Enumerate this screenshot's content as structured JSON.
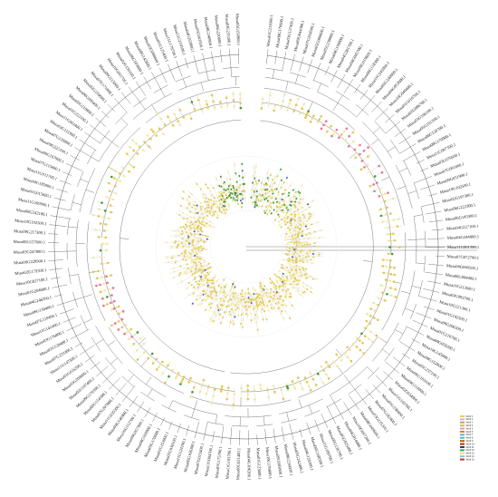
{
  "figure": {
    "leaf_labels": [
      "Musa01G213900.1",
      "Musa09G176600.1",
      "Musa03G137400.1",
      "Musa09G044300.1",
      "Musa07G204500.1",
      "Musa05G066600.1",
      "Musa05G238800.1",
      "Musa04G199000.1",
      "Musa04G281700.1",
      "Musa04G045700.1",
      "Musa06G019800.1",
      "Musa06G118300.1",
      "Musa11G245900.1",
      "Musa02G240000.1",
      "Musa04G052600.1",
      "Musa10G040400.1",
      "Musa01G016700.1",
      "Musa02G086700.1",
      "Musa03G196100.1",
      "Musa05G181200.1",
      "Musa08G120700.1",
      "Musa08G170900.1",
      "Musa11G067300.1",
      "Musa03G076600.1",
      "Musa07G091000.1",
      "Musa09G051900.1",
      "Musa10G102500.1",
      "Musa02G197300.1",
      "Musa06G222300.1",
      "Musa06G145900.1",
      "Musa04G227100.1",
      "Musa04G244900.1",
      "Musa11G001500.1",
      "Musa07G072700.1",
      "Musa08G080500.1",
      "Musa06G084400.1",
      "Musa05G213600.1",
      "Musa03G093700.1",
      "Musa10G221300.1",
      "Musa01G142500.1",
      "Musa09G206500.1",
      "Musa01G216700.1",
      "Musa09G059200.1",
      "Musa10G145000.1",
      "Musa08G152800.1",
      "Musa05G237100.1",
      "Musa06G183100.1",
      "Musa04G114900.1",
      "Musa02G034900.1",
      "Musa11G163700.1",
      "Musa01G196600.1",
      "Musa07G182400.1",
      "Musa03G235300.1",
      "Musa08G049600.1",
      "Musa10G047200.1",
      "Musa04G014400.1",
      "Musa05G025400.1",
      "Musa09G136700.1",
      "Musa11G189700.1",
      "Musa06G168500.1",
      "Musa04G120200.1",
      "Musa05G242400.1",
      "Musa08G256600.1",
      "Musa05G005800.1",
      "Musa10G178800.1",
      "Musa01G123800.1",
      "Musa04G106200.1",
      "Musa08G021400.1",
      "Musa11G103700.1",
      "Musa07G175700.1",
      "Musa11G084700.1",
      "Musa07G023400.1",
      "Musa05G166300.1",
      "Musa11G124100.1",
      "Musa05G038100.1",
      "Musa01G153900.1",
      "Musa01G170600.1",
      "Musa08G169900.1",
      "Musa09G057900.1",
      "Musa10G112700.1",
      "Musa04G146900.1",
      "Musa11G035300.1",
      "Musa07G207800.1",
      "Musa02G154500.1",
      "Musa09G170300.1",
      "Musa02G197400.1",
      "Musa03G209000.1",
      "Musa01G016200.1",
      "Musa11G147300.1",
      "Musa07G233300.1",
      "Musa02G128400.1",
      "Musa03G176800.1",
      "Musa11G141400.1",
      "Musa07G119400.1",
      "Musa06G130400.1",
      "Musa04G246500.1",
      "Musa01G204800.1",
      "Musa10G027100.1",
      "Musa02G179300.1",
      "Musa06G229900.1",
      "Musa03G247800.1",
      "Musa08G157600.1",
      "Musa09G217300.1",
      "Musa10G192500.1",
      "Musa08G242100.1",
      "Musa11G209900.1",
      "Musa01G015600.1",
      "Musa04G185900.1",
      "Musa11G011700.1",
      "Musa07G115000.1",
      "Musa06G167900.1",
      "Musa09G225100.1",
      "Musa07G226000.1",
      "Musa03G111900.1",
      "Musa11G063400.1",
      "Musa01G222100.1",
      "Musa05G110800.1",
      "Musa06G008400.1",
      "Musa02G230600.1",
      "Musa07G171800.1",
      "Musa09G215000.1",
      "Musa10G001700.1",
      "Musa02G150100.1",
      "Musa06G103800.1",
      "Musa08G142600.1",
      "Musa03G088600.1",
      "Musa01G125400.1",
      "Musa11G178700.1",
      "Musa11G210100.1",
      "Musa04G203800.1",
      "Musa05G063500.1",
      "Musa08G240900.1",
      "Musa06G220800.1",
      "Musa03G235200.1",
      "Musa05G150900.1"
    ],
    "legend": {
      "entries": [
        {
          "label": "Motif 1",
          "color": "#e8d44d"
        },
        {
          "label": "Motif 2",
          "color": "#f4a3c0"
        },
        {
          "label": "Motif 3",
          "color": "#7fbf7f"
        },
        {
          "label": "Motif 4",
          "color": "#f5b041"
        },
        {
          "label": "Motif 5",
          "color": "#c8a2c8"
        },
        {
          "label": "Motif 6",
          "color": "#e67e22"
        },
        {
          "label": "Motif 7",
          "color": "#5dade2"
        },
        {
          "label": "Motif 8",
          "color": "#48c9b0"
        },
        {
          "label": "Motif 9",
          "color": "#d35400"
        },
        {
          "label": "Motif 10",
          "color": "#a04000"
        },
        {
          "label": "Motif 11",
          "color": "#2e4053"
        },
        {
          "label": "Motif 12",
          "color": "#27ae60"
        },
        {
          "label": "Motif 13",
          "color": "#f7dc6f"
        },
        {
          "label": "Motif 14",
          "color": "#85c1e9"
        },
        {
          "label": "Motif 15",
          "color": "#c0392b"
        }
      ]
    },
    "colors": {
      "yellow": "#e3c84a",
      "light_yellow": "#f3e79a",
      "pink": "#e8748e",
      "green": "#3f9a3a",
      "blue": "#4a5fb0",
      "branch": "#444444"
    }
  }
}
